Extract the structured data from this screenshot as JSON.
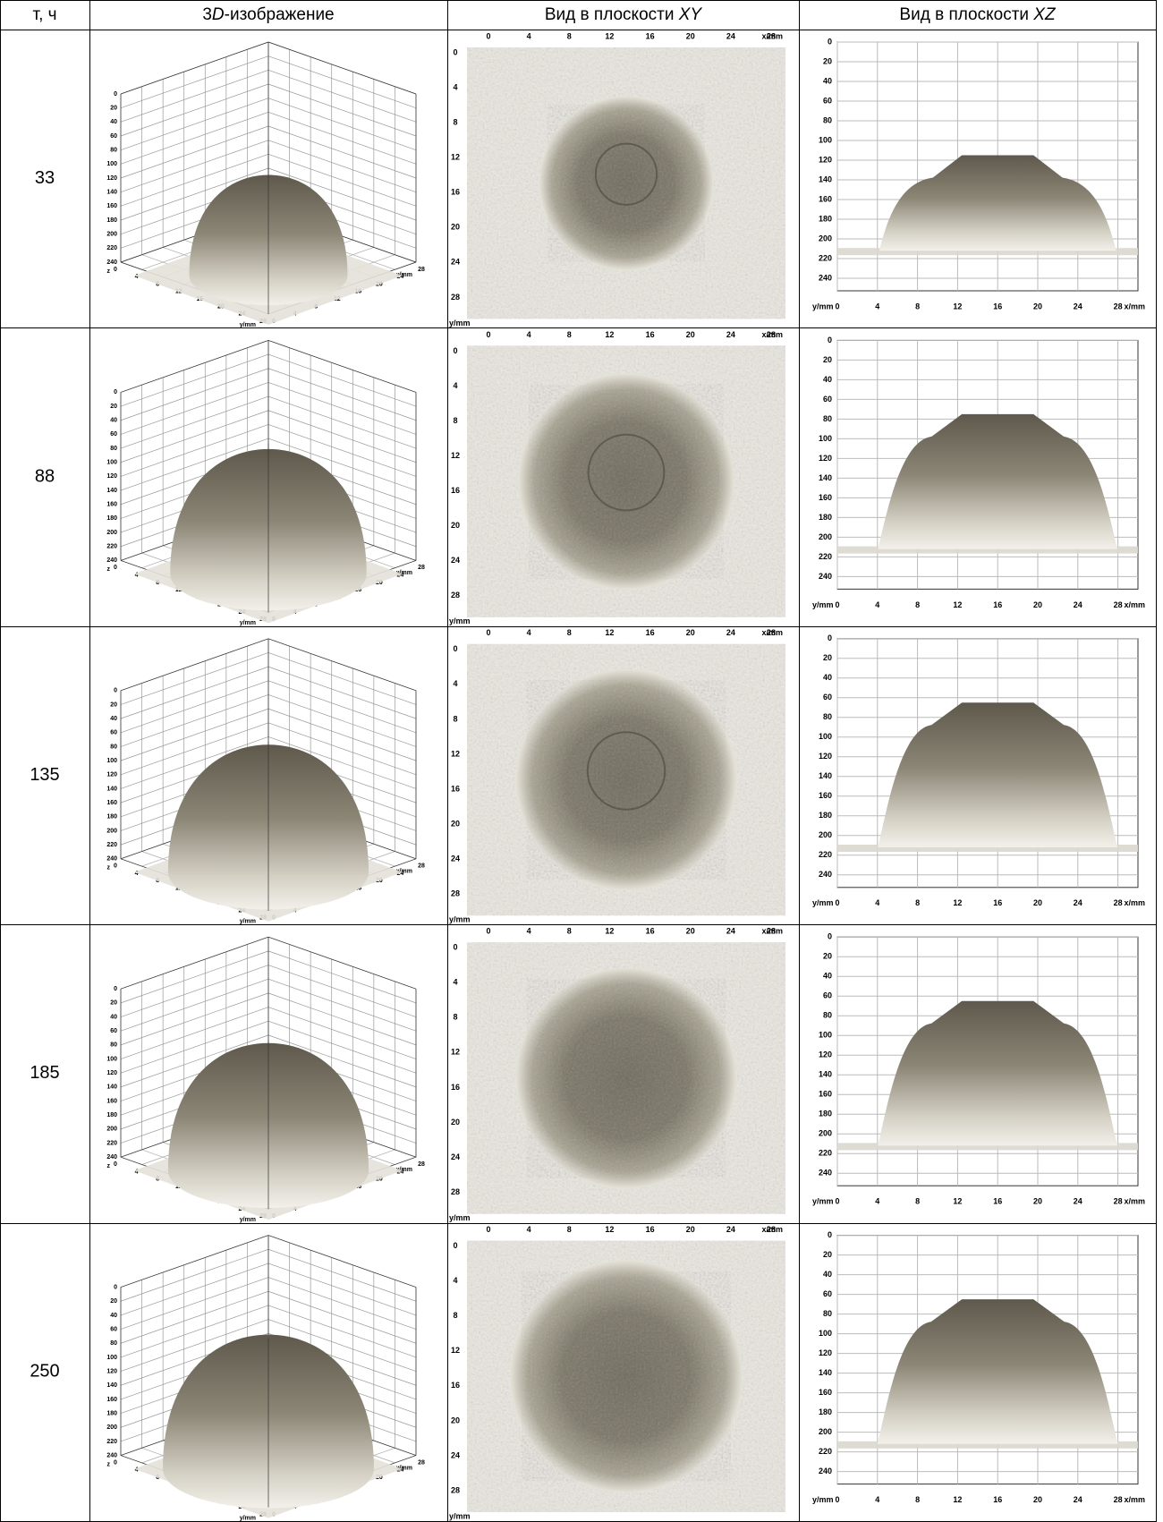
{
  "header": [
    [
      "т, ч"
    ],
    [
      "3",
      "D",
      "-изображение"
    ],
    [
      "Вид в плоскости ",
      "XY"
    ],
    [
      "Вид в плоскости ",
      "XZ"
    ]
  ],
  "rows": [
    {
      "time": "33"
    },
    {
      "time": "88"
    },
    {
      "time": "135"
    },
    {
      "time": "185"
    },
    {
      "time": "250"
    }
  ],
  "axes": {
    "mm_ticks": [
      0,
      4,
      8,
      12,
      16,
      20,
      24,
      28
    ],
    "z_ticks": [
      0,
      20,
      40,
      60,
      80,
      100,
      120,
      140,
      160,
      180,
      200,
      220,
      240
    ],
    "x_label": "x/mm",
    "y_label": "y/mm",
    "z_label": "z"
  }
}
